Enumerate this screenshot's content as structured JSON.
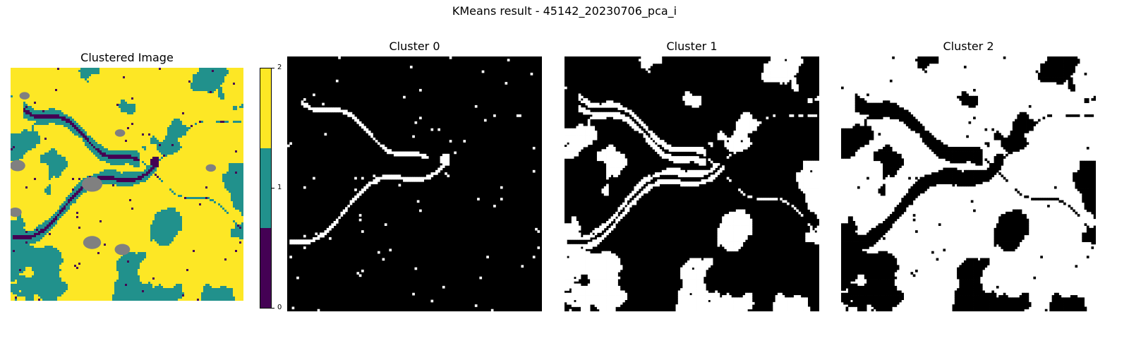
{
  "figure": {
    "suptitle": "KMeans result - 45142_20230706_pca_i"
  },
  "panels": [
    {
      "title": "Clustered Image"
    },
    {
      "title": "Cluster 0"
    },
    {
      "title": "Cluster 1"
    },
    {
      "title": "Cluster 2"
    }
  ],
  "colorbar": {
    "ticks": [
      "2",
      "1",
      "0"
    ],
    "colors": [
      "#fde725",
      "#21918c",
      "#440154"
    ]
  },
  "palette": {
    "cluster0": "#440154",
    "cluster1": "#21918c",
    "cluster2": "#fde725",
    "nodata": "#808080",
    "mask_on": "#ffffff",
    "mask_off": "#000000"
  }
}
